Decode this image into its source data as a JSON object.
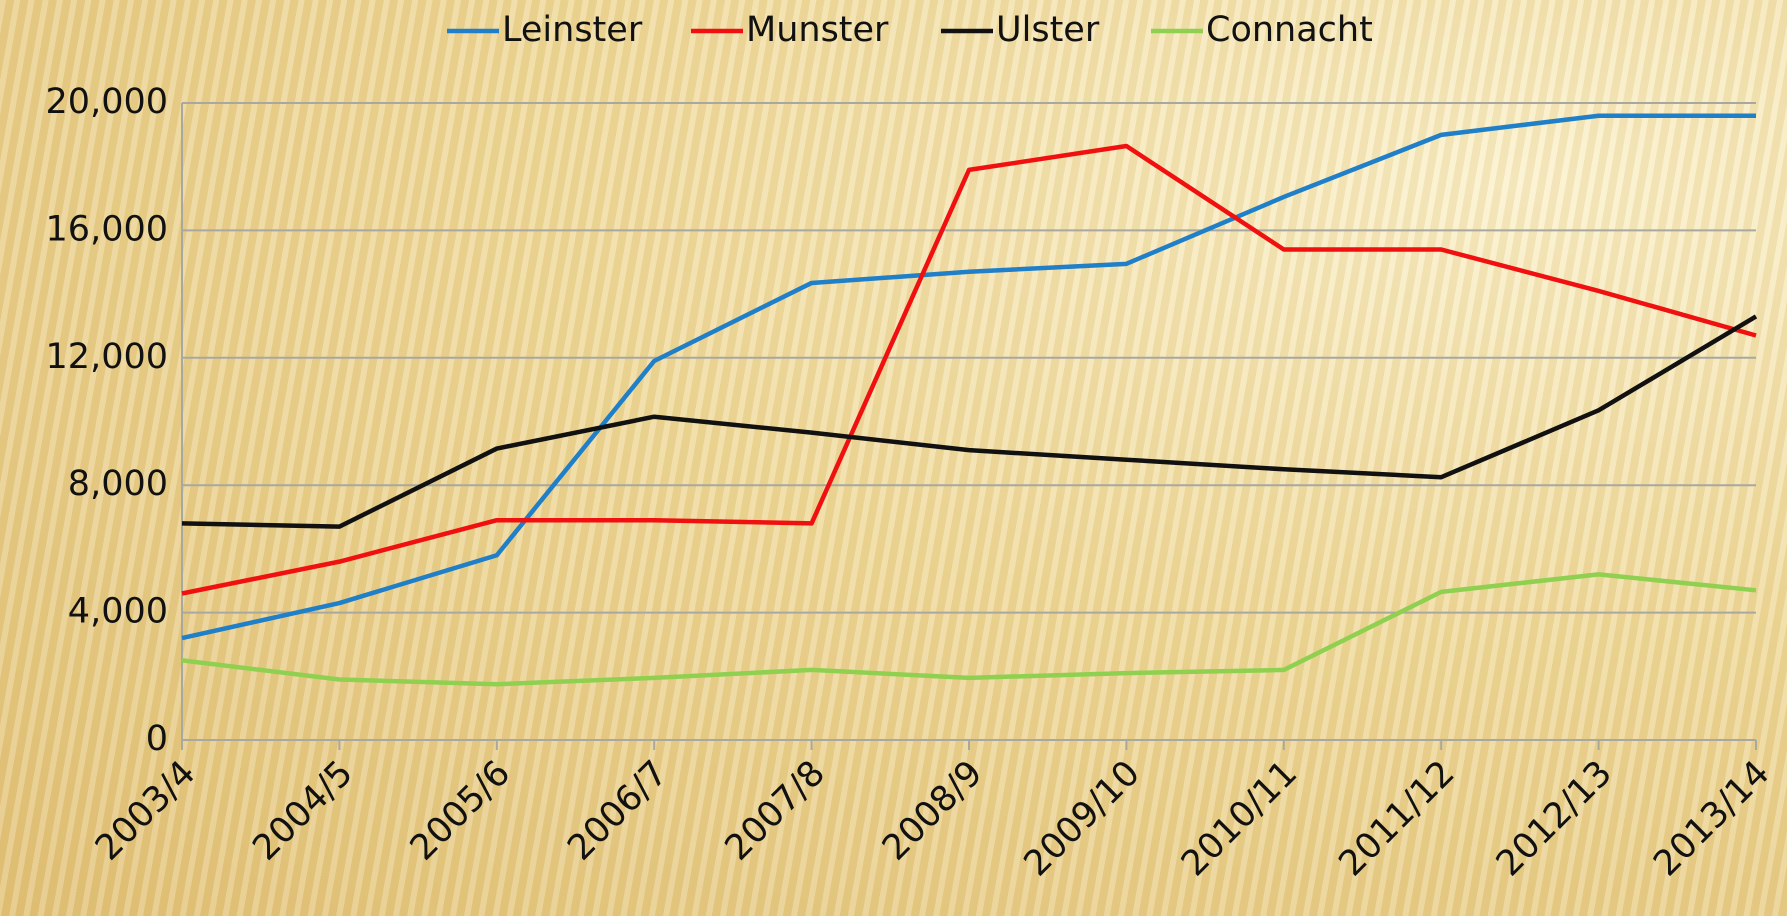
{
  "chart_data": {
    "type": "line",
    "categories": [
      "2003/4",
      "2004/5",
      "2005/6",
      "2006/7",
      "2007/8",
      "2008/9",
      "2009/10",
      "2010/11",
      "2011/12",
      "2012/13",
      "2013/14"
    ],
    "series": [
      {
        "name": "Leinster",
        "color": "#1f7fc8",
        "values": [
          3200,
          4300,
          5800,
          11900,
          14350,
          14700,
          14950,
          17050,
          19000,
          19600,
          19600
        ]
      },
      {
        "name": "Munster",
        "color": "#f01010",
        "values": [
          4600,
          5600,
          6900,
          6900,
          6800,
          17900,
          18650,
          15400,
          15400,
          14100,
          12700
        ]
      },
      {
        "name": "Ulster",
        "color": "#111111",
        "values": [
          6800,
          6700,
          9150,
          10150,
          9650,
          9100,
          8800,
          8500,
          8250,
          10350,
          13300
        ]
      },
      {
        "name": "Connacht",
        "color": "#8fd050",
        "values": [
          2500,
          1900,
          1750,
          1950,
          2200,
          1950,
          2100,
          2200,
          4650,
          5200,
          4700
        ]
      }
    ],
    "ylim": [
      0,
      20000
    ],
    "yticks": [
      0,
      {
        "value": 4000,
        "label": "4,000"
      },
      {
        "value": 8000,
        "label": "8,000"
      },
      {
        "value": 12000,
        "label": "12,000"
      },
      {
        "value": 16000,
        "label": "16,000"
      },
      {
        "value": 20000,
        "label": "20,000"
      }
    ],
    "grid": true,
    "legend": "top"
  }
}
